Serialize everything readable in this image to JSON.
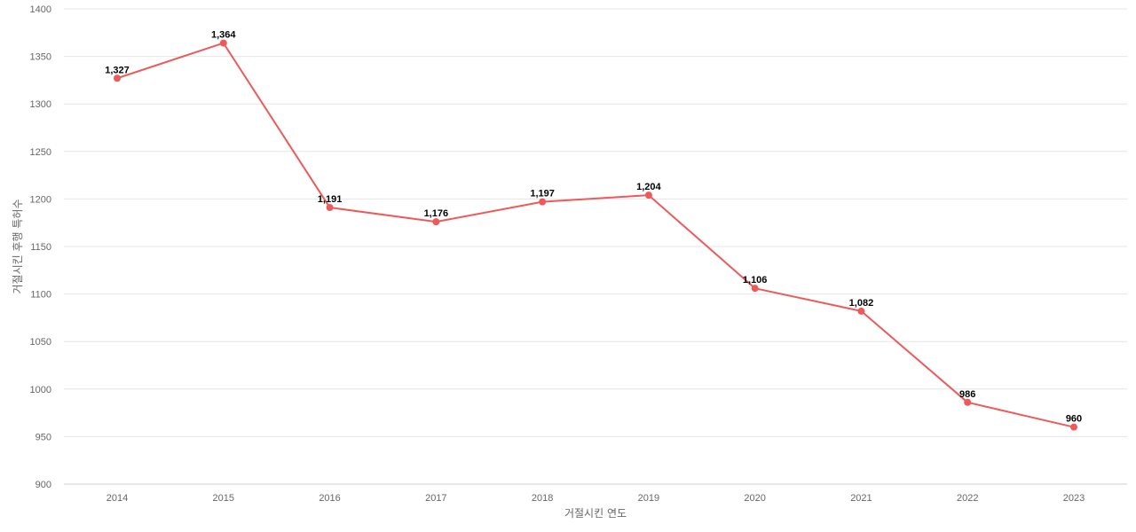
{
  "chart_data": {
    "type": "line",
    "title": "",
    "xlabel": "거절시킨 연도",
    "ylabel": "거절시킨 후행 특허수",
    "x": [
      "2014",
      "2015",
      "2016",
      "2017",
      "2018",
      "2019",
      "2020",
      "2021",
      "2022",
      "2023"
    ],
    "series": [
      {
        "values": [
          1327,
          1364,
          1191,
          1176,
          1197,
          1204,
          1106,
          1082,
          986,
          960
        ],
        "labels": [
          "1,327",
          "1,364",
          "1,191",
          "1,176",
          "1,197",
          "1,204",
          "1,106",
          "1,082",
          "986",
          "960"
        ],
        "color": "#ee5a5a"
      }
    ],
    "ylim": [
      900,
      1400
    ],
    "yticks": [
      900,
      950,
      1000,
      1050,
      1100,
      1150,
      1200,
      1250,
      1300,
      1350,
      1400
    ],
    "grid": true,
    "legend": "none"
  }
}
